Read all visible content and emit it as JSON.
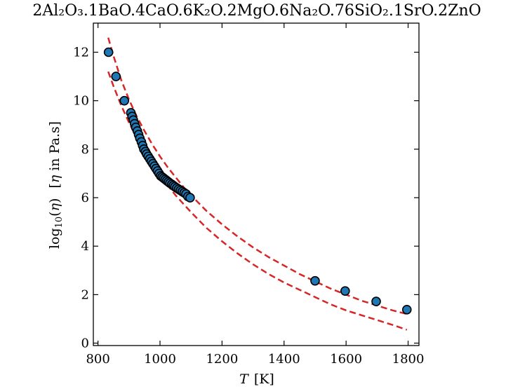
{
  "chart_data": {
    "type": "scatter",
    "title": "2Al₂O₃.1BaO.4CaO.6K₂O.2MgO.6Na₂O.76SiO₂.1SrO.2ZnO",
    "xlabel_italic": "T",
    "xlabel_unit": "[K]",
    "ylabel_prefix": "log",
    "ylabel_sub": "10",
    "ylabel_open": "(",
    "ylabel_var": "η",
    "ylabel_close": ")",
    "ylabel_bracket_open": "[",
    "ylabel_in": "in Pa.s]",
    "xlim": [
      785,
      1835
    ],
    "ylim": [
      -0.1,
      13.2
    ],
    "xticks": [
      800,
      1000,
      1200,
      1400,
      1600,
      1800
    ],
    "yticks": [
      0,
      2,
      4,
      6,
      8,
      10,
      12
    ],
    "grid": false,
    "series": [
      {
        "kind": "points",
        "color": "#1f77b4",
        "edge": "#000000",
        "x": [
          834,
          858,
          885,
          906,
          910,
          914,
          918,
          922,
          927,
          931,
          935,
          940,
          944,
          948,
          953,
          957,
          962,
          967,
          972,
          977,
          982,
          987,
          992,
          997,
          1002,
          1007,
          1012,
          1017,
          1022,
          1027,
          1032,
          1038,
          1043,
          1048,
          1054,
          1060,
          1066,
          1072,
          1078,
          1084,
          1090,
          1097,
          1500,
          1597,
          1697,
          1796
        ],
        "y": [
          12.0,
          11.0,
          10.0,
          9.5,
          9.35,
          9.2,
          9.05,
          8.9,
          8.75,
          8.6,
          8.45,
          8.3,
          8.15,
          8.0,
          7.9,
          7.8,
          7.7,
          7.6,
          7.5,
          7.4,
          7.3,
          7.2,
          7.1,
          7.0,
          6.9,
          6.85,
          6.8,
          6.75,
          6.7,
          6.65,
          6.6,
          6.55,
          6.5,
          6.45,
          6.4,
          6.35,
          6.3,
          6.25,
          6.2,
          6.15,
          6.05,
          6.0,
          2.57,
          2.15,
          1.72,
          1.38
        ]
      },
      {
        "kind": "dashed-line",
        "color": "#d62728",
        "x": [
          833,
          850,
          875,
          900,
          925,
          950,
          975,
          1000,
          1025,
          1050,
          1075,
          1100,
          1150,
          1200,
          1250,
          1300,
          1350,
          1400,
          1450,
          1500,
          1550,
          1600,
          1650,
          1700,
          1750,
          1796
        ],
        "y": [
          12.6,
          11.85,
          10.85,
          10.05,
          9.35,
          8.75,
          8.2,
          7.7,
          7.25,
          6.85,
          6.45,
          6.1,
          5.45,
          4.9,
          4.4,
          3.95,
          3.55,
          3.2,
          2.85,
          2.55,
          2.25,
          2.0,
          1.75,
          1.55,
          1.35,
          1.2
        ]
      },
      {
        "kind": "dashed-line",
        "color": "#d62728",
        "x": [
          833,
          850,
          875,
          900,
          925,
          950,
          975,
          1000,
          1025,
          1050,
          1075,
          1100,
          1150,
          1200,
          1250,
          1300,
          1350,
          1400,
          1450,
          1500,
          1550,
          1600,
          1650,
          1700,
          1750,
          1796
        ],
        "y": [
          11.2,
          10.6,
          9.8,
          9.1,
          8.45,
          7.9,
          7.4,
          6.95,
          6.5,
          6.1,
          5.75,
          5.4,
          4.75,
          4.2,
          3.7,
          3.25,
          2.85,
          2.5,
          2.2,
          1.9,
          1.6,
          1.35,
          1.15,
          0.95,
          0.75,
          0.55
        ]
      }
    ]
  }
}
